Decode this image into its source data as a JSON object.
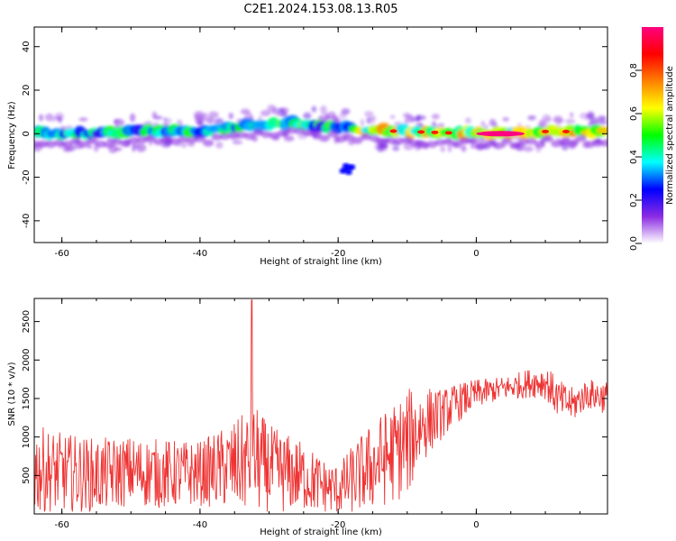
{
  "figure": {
    "title": "C2E1.2024.153.08.13.R05"
  },
  "chart_data": [
    {
      "type": "heatmap",
      "xlabel": "Height of straight line (km)",
      "ylabel": "Frequency (Hz)",
      "xlim": [
        -64,
        19
      ],
      "ylim": [
        -50,
        49
      ],
      "xticks": [
        -60,
        -40,
        -20,
        0
      ],
      "yticks": [
        -40,
        -20,
        0,
        20,
        40
      ],
      "band_center_hz": [
        [
          -63,
          0
        ],
        [
          -55,
          0
        ],
        [
          -50,
          1
        ],
        [
          -40,
          1
        ],
        [
          -32,
          4
        ],
        [
          -27,
          5
        ],
        [
          -20,
          3
        ],
        [
          -15,
          1.5
        ],
        [
          -10,
          1
        ],
        [
          -5,
          0.5
        ],
        [
          0,
          0
        ],
        [
          5,
          0
        ],
        [
          10,
          1
        ],
        [
          15,
          1
        ],
        [
          19,
          1
        ]
      ],
      "features": [
        {
          "label": "weak scatter near -20 km",
          "x": -19.5,
          "y": -16,
          "amplitude": 0.25
        },
        {
          "label": "strongest return",
          "x_range": [
            0,
            7
          ],
          "y": 0,
          "amplitude": 1.0
        }
      ],
      "colorbar": {
        "label": "Normalized spectral amplitude",
        "range": [
          0,
          1
        ],
        "ticks": [
          0.0,
          0.2,
          0.4,
          0.6,
          0.8
        ],
        "colors": [
          "#ffffff",
          "#8a2be2",
          "#0000ff",
          "#00ffff",
          "#00ff00",
          "#ffff00",
          "#ff8000",
          "#ff0000",
          "#ff0080"
        ]
      }
    },
    {
      "type": "line",
      "xlabel": "Height of straight line (km)",
      "ylabel": "SNR (10 * v/v)",
      "xlim": [
        -64,
        19
      ],
      "ylim": [
        0,
        2800
      ],
      "xticks": [
        -60,
        -40,
        -20,
        0
      ],
      "yticks": [
        500,
        1000,
        1500,
        2000,
        2500
      ],
      "color": "#ee3333",
      "envelope": {
        "x": [
          -64,
          -60,
          -55,
          -50,
          -45,
          -40,
          -35,
          -32,
          -30,
          -25,
          -22,
          -20,
          -18,
          -15,
          -12,
          -10,
          -8,
          -5,
          -3,
          0,
          2,
          5,
          8,
          10,
          12,
          14,
          16,
          19
        ],
        "base": [
          400,
          380,
          350,
          420,
          380,
          400,
          450,
          500,
          400,
          350,
          250,
          220,
          300,
          450,
          600,
          700,
          1000,
          1200,
          1350,
          1500,
          1550,
          1600,
          1650,
          1650,
          1400,
          1350,
          1500,
          1450
        ],
        "amp": [
          900,
          800,
          750,
          700,
          700,
          650,
          900,
          1100,
          900,
          700,
          550,
          500,
          700,
          900,
          1000,
          1100,
          800,
          500,
          400,
          300,
          250,
          250,
          300,
          350,
          400,
          350,
          300,
          350
        ]
      },
      "peak": {
        "x": -32.5,
        "y": 2780
      }
    }
  ]
}
